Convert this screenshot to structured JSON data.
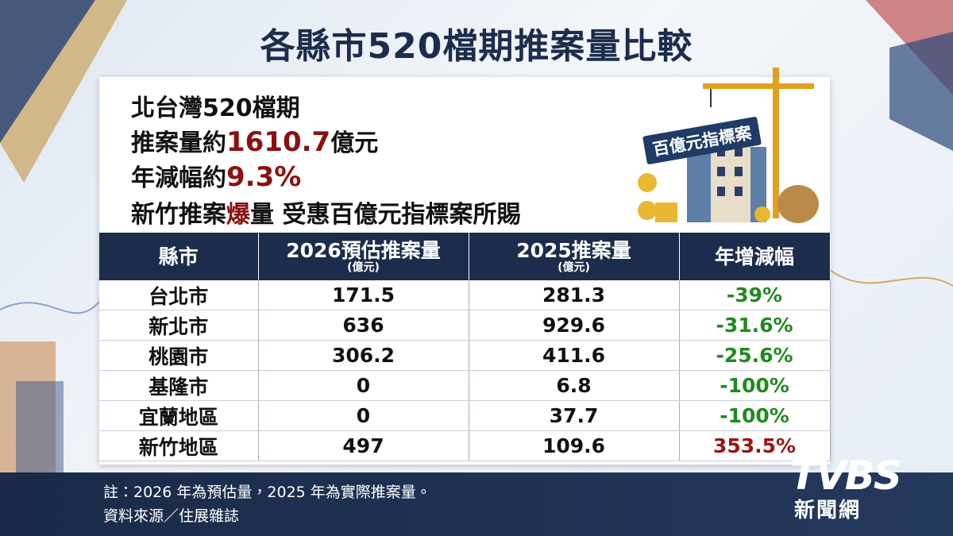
{
  "title": "各縣市520檔期推案量比較",
  "summary": {
    "line1": "北台灣520檔期",
    "line2": {
      "prefix": "推案量約",
      "amount": "1610.7",
      "unit": "億元"
    },
    "line3": {
      "prefix": "年減幅約",
      "rate": "9.3%"
    },
    "line4": {
      "prefix": "新竹推案",
      "emphasis": "爆",
      "suffix": "量 受惠百億元指標案所賜"
    }
  },
  "badge": "百億元指標案",
  "table": {
    "header": [
      {
        "main": "縣市"
      },
      {
        "main": "2026預估推案量",
        "unit": "(億元)"
      },
      {
        "main": "2025推案量",
        "unit": "(億元)"
      },
      {
        "main": "年增減幅"
      }
    ],
    "rows": [
      [
        "台北市",
        "171.5",
        "281.3",
        "-39%"
      ],
      [
        "新北市",
        "636",
        "929.6",
        "-31.6%"
      ],
      [
        "桃園市",
        "306.2",
        "411.6",
        "-25.6%"
      ],
      [
        "基隆市",
        "0",
        "6.8",
        "-100%"
      ],
      [
        "宜蘭地區",
        "0",
        "37.7",
        "-100%"
      ],
      [
        "新竹地區",
        "497",
        "109.6",
        "353.5%"
      ]
    ],
    "change_colors": [
      "#1f8a1f",
      "#1f8a1f",
      "#1f8a1f",
      "#1f8a1f",
      "#1f8a1f",
      "#9b1414"
    ]
  },
  "notes": [
    "註：2026 年為預估量，2025 年為實際推案量。",
    "資料來源／住展雜誌"
  ],
  "logo": {
    "brand": "TVBS",
    "sub": "新聞網"
  }
}
